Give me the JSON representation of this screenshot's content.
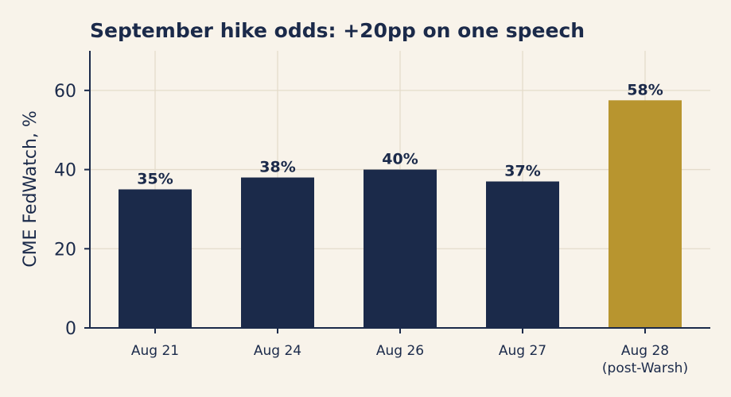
{
  "chart_data": {
    "type": "bar",
    "title": "September hike odds: +20pp on one speech",
    "xlabel": "",
    "ylabel": "CME FedWatch, %",
    "ylim": [
      0,
      70
    ],
    "yticks": [
      0,
      20,
      40,
      60
    ],
    "grid": true,
    "categories": [
      [
        "Aug 21"
      ],
      [
        "Aug 24"
      ],
      [
        "Aug 26"
      ],
      [
        "Aug 27"
      ],
      [
        "Aug 28",
        "(post-Warsh)"
      ]
    ],
    "values": [
      35,
      38,
      40,
      37,
      57.5
    ],
    "data_labels": [
      "35%",
      "38%",
      "40%",
      "37%",
      "58%"
    ],
    "colors": [
      "#1b2a4a",
      "#1b2a4a",
      "#1b2a4a",
      "#1b2a4a",
      "#b8952f"
    ]
  }
}
